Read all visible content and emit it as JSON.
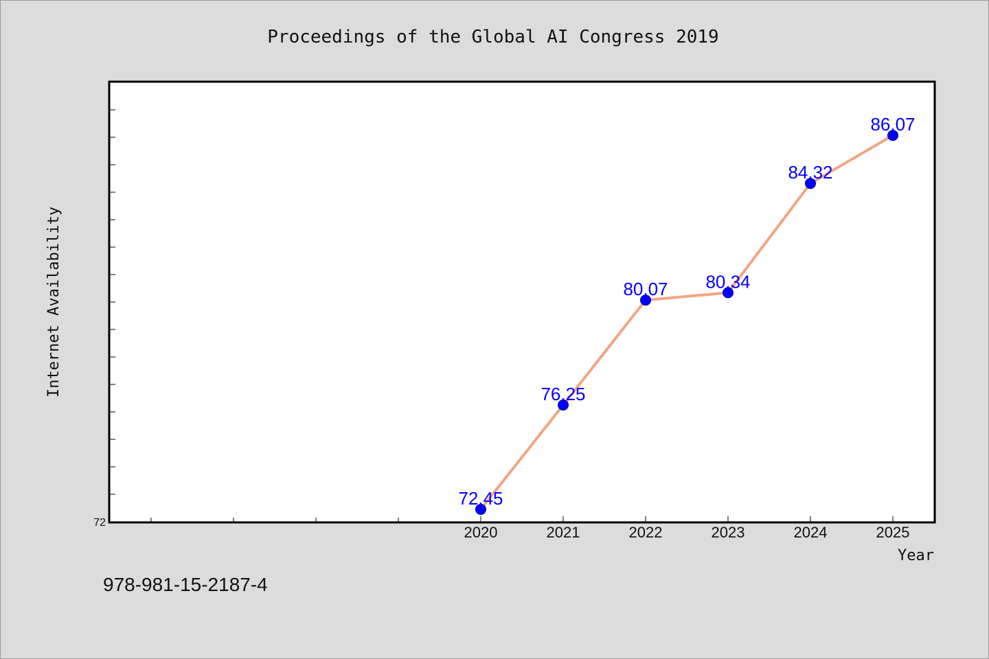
{
  "chart_data": {
    "type": "line",
    "title": "Proceedings of the Global AI Congress 2019",
    "xlabel": "Year",
    "ylabel": "Internet Availability",
    "x": [
      "2020",
      "2021",
      "2022",
      "2023",
      "2024",
      "2025"
    ],
    "series": [
      {
        "values": [
          72.45,
          76.25,
          80.07,
          80.34,
          84.32,
          86.07
        ],
        "labels": [
          "72.45",
          "76.25",
          "80.07",
          "80.34",
          "84.32",
          "86.07"
        ]
      }
    ],
    "ylim": [
      72,
      88
    ],
    "yticks_labeled": [
      "72"
    ],
    "grid": false,
    "legend": "none",
    "line_color": "#f4a582",
    "marker_color": "#0000ff",
    "label_color": "#0000ff"
  },
  "footer": {
    "isbn": "978-981-15-2187-4"
  }
}
